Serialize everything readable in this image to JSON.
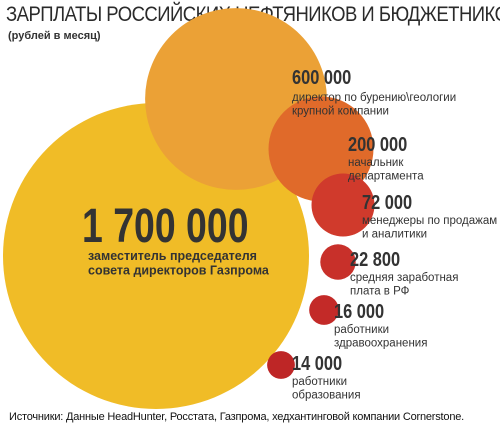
{
  "title": "ЗАРПЛАТЫ РОССИЙСКИХ НЕФТЯНИКОВ И БЮДЖЕТНИКОВ",
  "subtitle": "(рублей в месяц)",
  "source": "Источники: Данные HeadHunter, Росстата, Газпрома, хедхантинговой компании Cornerstone.",
  "chart_data": {
    "type": "bubble",
    "title": "ЗАРПЛАТЫ РОССИЙСКИХ НЕФТЯНИКОВ И БЮДЖЕТНИКОВ",
    "subtitle": "(рублей в месяц)",
    "items": [
      {
        "value": 1700000,
        "value_label": "1 700 000",
        "label_lines": [
          "заместитель председателя",
          "совета директоров Газпрома"
        ],
        "color": "#F0BC27"
      },
      {
        "value": 600000,
        "value_label": "600 000",
        "label_lines": [
          "директор по бурению\\геологии",
          "крупной компании"
        ],
        "color": "#EBA136"
      },
      {
        "value": 200000,
        "value_label": "200 000",
        "label_lines": [
          "начальник",
          "департамента"
        ],
        "color": "#E06A2A"
      },
      {
        "value": 72000,
        "value_label": "72 000",
        "label_lines": [
          "менеджеры по продажам",
          "и аналитики"
        ],
        "color": "#D03A2C"
      },
      {
        "value": 22800,
        "value_label": "22 800",
        "label_lines": [
          "средняя заработная",
          "плата в РФ"
        ],
        "color": "#C8302A"
      },
      {
        "value": 16000,
        "value_label": "16 000",
        "label_lines": [
          "работники",
          "здравоохранения"
        ],
        "color": "#C32A28"
      },
      {
        "value": 14000,
        "value_label": "14 000",
        "label_lines": [
          "работники",
          "образования"
        ],
        "color": "#BE2626"
      }
    ]
  }
}
